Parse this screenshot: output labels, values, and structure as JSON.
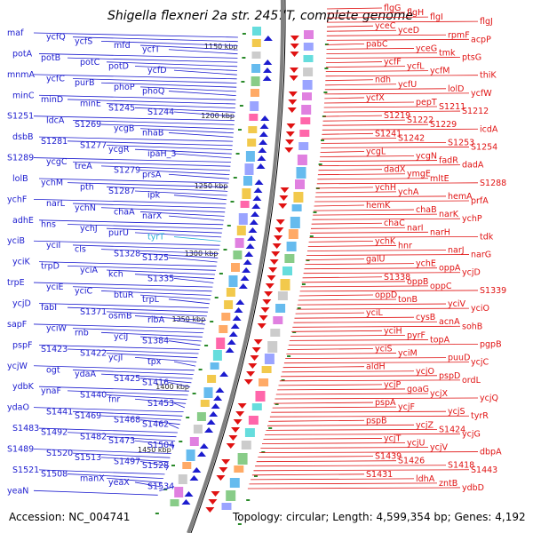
{
  "title": "Shigella flexneri 2a str. 2457T, complete genome",
  "footer": {
    "accession": "Accession: NC_004741",
    "summary": "Topology: circular; Length: 4,599,354 bp; Genes: 4,192"
  },
  "colors": {
    "forward_strand": "#1c1ccf",
    "reverse_strand": "#e01212",
    "highlight": "#2ab0d8",
    "backbone": "#808080",
    "tick": "#2a8a2a"
  },
  "scale_labels": [
    "1150 kbp",
    "1200 kbp",
    "1250 kbp",
    "1300 kbp",
    "1350 kbp",
    "1400 kbp",
    "1450 kbp"
  ],
  "left_labels": [
    "maf",
    "ycfQ",
    "ycfS",
    "mfd",
    "ycfT",
    "potA",
    "potB",
    "potC",
    "potD",
    "ycfD",
    "mnmA",
    "ycfC",
    "purB",
    "phoP",
    "phoQ",
    "minC",
    "minD",
    "minE",
    "S1245",
    "S1244",
    "S1251",
    "ldcA",
    "S1269",
    "ycgB",
    "nhaB",
    "dsbB",
    "S1281",
    "S1277",
    "ycgR",
    "ipaH_3",
    "S1289",
    "ycgC",
    "treA",
    "S1279",
    "prsA",
    "lolB",
    "ychM",
    "pth",
    "S1287",
    "ipk",
    "ychF",
    "narL",
    "ychN",
    "chaA",
    "narX",
    "adhE",
    "hns",
    "ychJ",
    "purU",
    "tyrT",
    "yciB",
    "yciI",
    "cls",
    "S1328",
    "S1325",
    "yciK",
    "trpD",
    "yciA",
    "kch",
    "S1335",
    "trpE",
    "yciE",
    "yciC",
    "btuR",
    "trpL",
    "ycjD",
    "fabI",
    "S1371",
    "osmB",
    "ribA",
    "sapF",
    "yciW",
    "rnb",
    "yciJ",
    "S1384",
    "pspF",
    "S1423",
    "S1422",
    "ycjI",
    "tpx",
    "ycjW",
    "ogt",
    "ydaA",
    "S1425",
    "S1416",
    "ydbK",
    "ynaF",
    "S1440",
    "fnr",
    "S1453",
    "ydaO",
    "S1441",
    "S1469",
    "S1468",
    "S1462",
    "S1483",
    "S1492",
    "S1482",
    "S1473",
    "S1504",
    "S1489",
    "S1520",
    "S1513",
    "S1497",
    "S1528",
    "S1521",
    "S1508",
    "manX",
    "yeaX",
    "S1534",
    "yeaN"
  ],
  "right_labels": [
    "flgG",
    "flgH",
    "flgI",
    "flgJ",
    "yceC",
    "yceD",
    "rpmF",
    "acpP",
    "pabC",
    "yceG",
    "tmk",
    "ptsG",
    "ycfF",
    "ycfL",
    "ycfM",
    "thiK",
    "ndh",
    "ycfU",
    "lolD",
    "ycfW",
    "ycfX",
    "pepT",
    "S1211",
    "S1212",
    "S1219",
    "S1222",
    "S1229",
    "icdA",
    "S1241",
    "S1242",
    "S1253",
    "S1254",
    "ycgL",
    "ycgN",
    "fadR",
    "dadA",
    "dadX",
    "ymgE",
    "mltE",
    "S1288",
    "ychH",
    "ychA",
    "hemA",
    "prfA",
    "hemK",
    "chaB",
    "narK",
    "ychP",
    "chaC",
    "narI",
    "narH",
    "tdk",
    "ychK",
    "hnr",
    "narJ",
    "narG",
    "galU",
    "ychE",
    "oppA",
    "ycjD",
    "S1338",
    "oppB",
    "oppC",
    "S1339",
    "oppD",
    "tonB",
    "yciV",
    "yciO",
    "yciL",
    "cysB",
    "acnA",
    "sohB",
    "yciH",
    "pyrF",
    "topA",
    "pgpB",
    "yciS",
    "yciM",
    "puuD",
    "ycjC",
    "aldH",
    "ycjO",
    "pspD",
    "ordL",
    "ycjP",
    "goaG",
    "ycjX",
    "ycjQ",
    "pspA",
    "ycjF",
    "ycjS",
    "tyrR",
    "pspB",
    "ycjZ",
    "S1424",
    "ycjG",
    "ycjT",
    "ycjU",
    "ycjV",
    "dbpA",
    "S1439",
    "S1426",
    "S1418",
    "S1443",
    "S1431",
    "ldhA",
    "zntB",
    "ydbD"
  ]
}
